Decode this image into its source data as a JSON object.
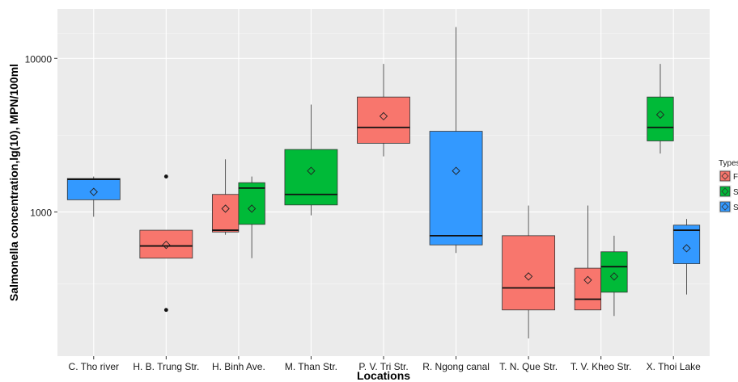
{
  "chart_data": {
    "type": "box",
    "xlabel": "Locations",
    "ylabel": "Salmonella concentration,lg(10), MPN/100ml",
    "yscale": "log",
    "ylim": [
      115,
      21000
    ],
    "yticks": [
      1000,
      10000
    ],
    "ytick_labels": [
      "1000",
      "10000"
    ],
    "grid": true,
    "legend": {
      "title": "Types",
      "position": "right",
      "entries": [
        "FL",
        "SI",
        "SU"
      ]
    },
    "colors": {
      "FL": "#F8766D",
      "SI": "#00BA38",
      "SU": "#3399FF"
    },
    "categories": [
      "C. Tho river",
      "H. B. Trung Str.",
      "H. Binh Ave.",
      "M. Than Str.",
      "P. V. Tri Str.",
      "R. Ngong canal",
      "T. N. Que Str.",
      "T. V. Kheo Str.",
      "X. Thoi Lake"
    ],
    "boxes": [
      {
        "category": "C. Tho river",
        "type": "SU",
        "lower_whisker": 930,
        "q1": 1200,
        "median": 1630,
        "q3": 1650,
        "upper_whisker": 1700,
        "mean": 1350,
        "outliers": []
      },
      {
        "category": "H. B. Trung Str.",
        "type": "FL",
        "lower_whisker": 500,
        "q1": 500,
        "median": 600,
        "q3": 760,
        "upper_whisker": 760,
        "mean": 610,
        "outliers": [
          1700,
          230
        ]
      },
      {
        "category": "H. Binh Ave.",
        "type": "FL",
        "lower_whisker": 710,
        "q1": 740,
        "median": 760,
        "q3": 1300,
        "upper_whisker": 2200,
        "mean": 1050,
        "outliers": []
      },
      {
        "category": "H. Binh Ave.",
        "type": "SI",
        "lower_whisker": 500,
        "q1": 830,
        "median": 1430,
        "q3": 1550,
        "upper_whisker": 1700,
        "mean": 1050,
        "outliers": []
      },
      {
        "category": "M. Than Str.",
        "type": "SI",
        "lower_whisker": 950,
        "q1": 1110,
        "median": 1300,
        "q3": 2550,
        "upper_whisker": 5000,
        "mean": 1850,
        "outliers": []
      },
      {
        "category": "P. V. Tri Str.",
        "type": "FL",
        "lower_whisker": 2300,
        "q1": 2800,
        "median": 3550,
        "q3": 5600,
        "upper_whisker": 9200,
        "mean": 4200,
        "outliers": []
      },
      {
        "category": "R. Ngong canal",
        "type": "SU",
        "lower_whisker": 540,
        "q1": 610,
        "median": 700,
        "q3": 3350,
        "upper_whisker": 16000,
        "mean": 1850,
        "outliers": []
      },
      {
        "category": "T. N. Que Str.",
        "type": "FL",
        "lower_whisker": 150,
        "q1": 230,
        "median": 320,
        "q3": 700,
        "upper_whisker": 1100,
        "mean": 380,
        "outliers": []
      },
      {
        "category": "T. V. Kheo Str.",
        "type": "FL",
        "lower_whisker": 230,
        "q1": 230,
        "median": 270,
        "q3": 430,
        "upper_whisker": 1100,
        "mean": 360,
        "outliers": []
      },
      {
        "category": "T. V. Kheo Str.",
        "type": "SI",
        "lower_whisker": 210,
        "q1": 300,
        "median": 440,
        "q3": 550,
        "upper_whisker": 700,
        "mean": 380,
        "outliers": []
      },
      {
        "category": "X. Thoi Lake",
        "type": "SI",
        "lower_whisker": 2400,
        "q1": 2900,
        "median": 3550,
        "q3": 5600,
        "upper_whisker": 9200,
        "mean": 4300,
        "outliers": []
      },
      {
        "category": "X. Thoi Lake",
        "type": "SU",
        "lower_whisker": 290,
        "q1": 460,
        "median": 760,
        "q3": 820,
        "upper_whisker": 900,
        "mean": 580,
        "outliers": []
      }
    ]
  }
}
